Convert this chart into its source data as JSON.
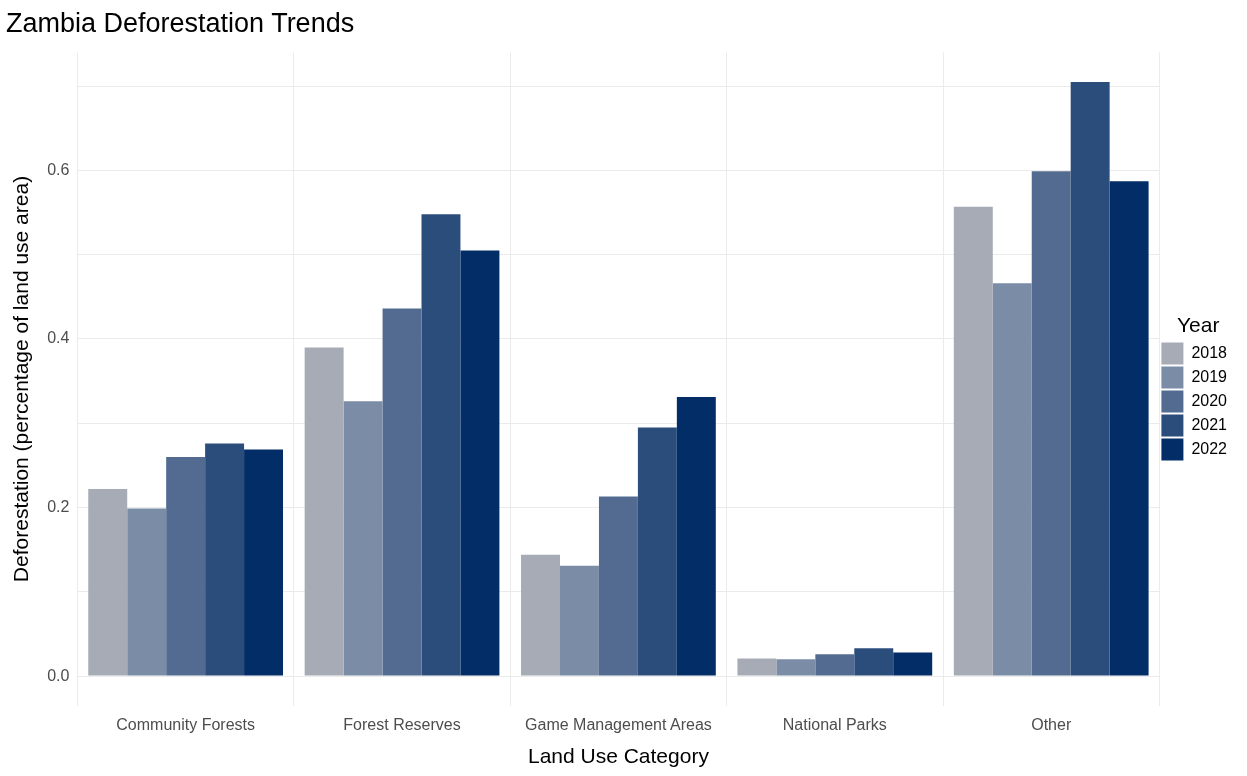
{
  "chart_data": {
    "type": "bar",
    "title": "Zambia Deforestation Trends",
    "xlabel": "Land Use Category",
    "ylabel": "Deforestation (percentage of land use area)",
    "legend_title": "Year",
    "categories": [
      "Community Forests",
      "Forest Reserves",
      "Game Management Areas",
      "National Parks",
      "Other"
    ],
    "series": [
      {
        "name": "2018",
        "color": "#a6abb6",
        "values": [
          0.222,
          0.39,
          0.144,
          0.021,
          0.557
        ]
      },
      {
        "name": "2019",
        "color": "#7b8da6",
        "values": [
          0.199,
          0.326,
          0.131,
          0.02,
          0.466
        ]
      },
      {
        "name": "2020",
        "color": "#536b91",
        "values": [
          0.26,
          0.436,
          0.213,
          0.026,
          0.599
        ]
      },
      {
        "name": "2021",
        "color": "#2b4d7c",
        "values": [
          0.276,
          0.548,
          0.295,
          0.033,
          0.705
        ]
      },
      {
        "name": "2022",
        "color": "#022d66",
        "values": [
          0.269,
          0.505,
          0.331,
          0.028,
          0.587
        ]
      }
    ],
    "ylim": [
      -0.035,
      0.74
    ],
    "yticks": [
      {
        "value": 0,
        "label": "0.0"
      },
      {
        "value": 0.1,
        "label": null
      },
      {
        "value": 0.2,
        "label": "0.2"
      },
      {
        "value": 0.3,
        "label": null
      },
      {
        "value": 0.4,
        "label": "0.4"
      },
      {
        "value": 0.5,
        "label": null
      },
      {
        "value": 0.6,
        "label": "0.6"
      },
      {
        "value": 0.7,
        "label": null
      }
    ],
    "grid": true,
    "legend": "right"
  }
}
